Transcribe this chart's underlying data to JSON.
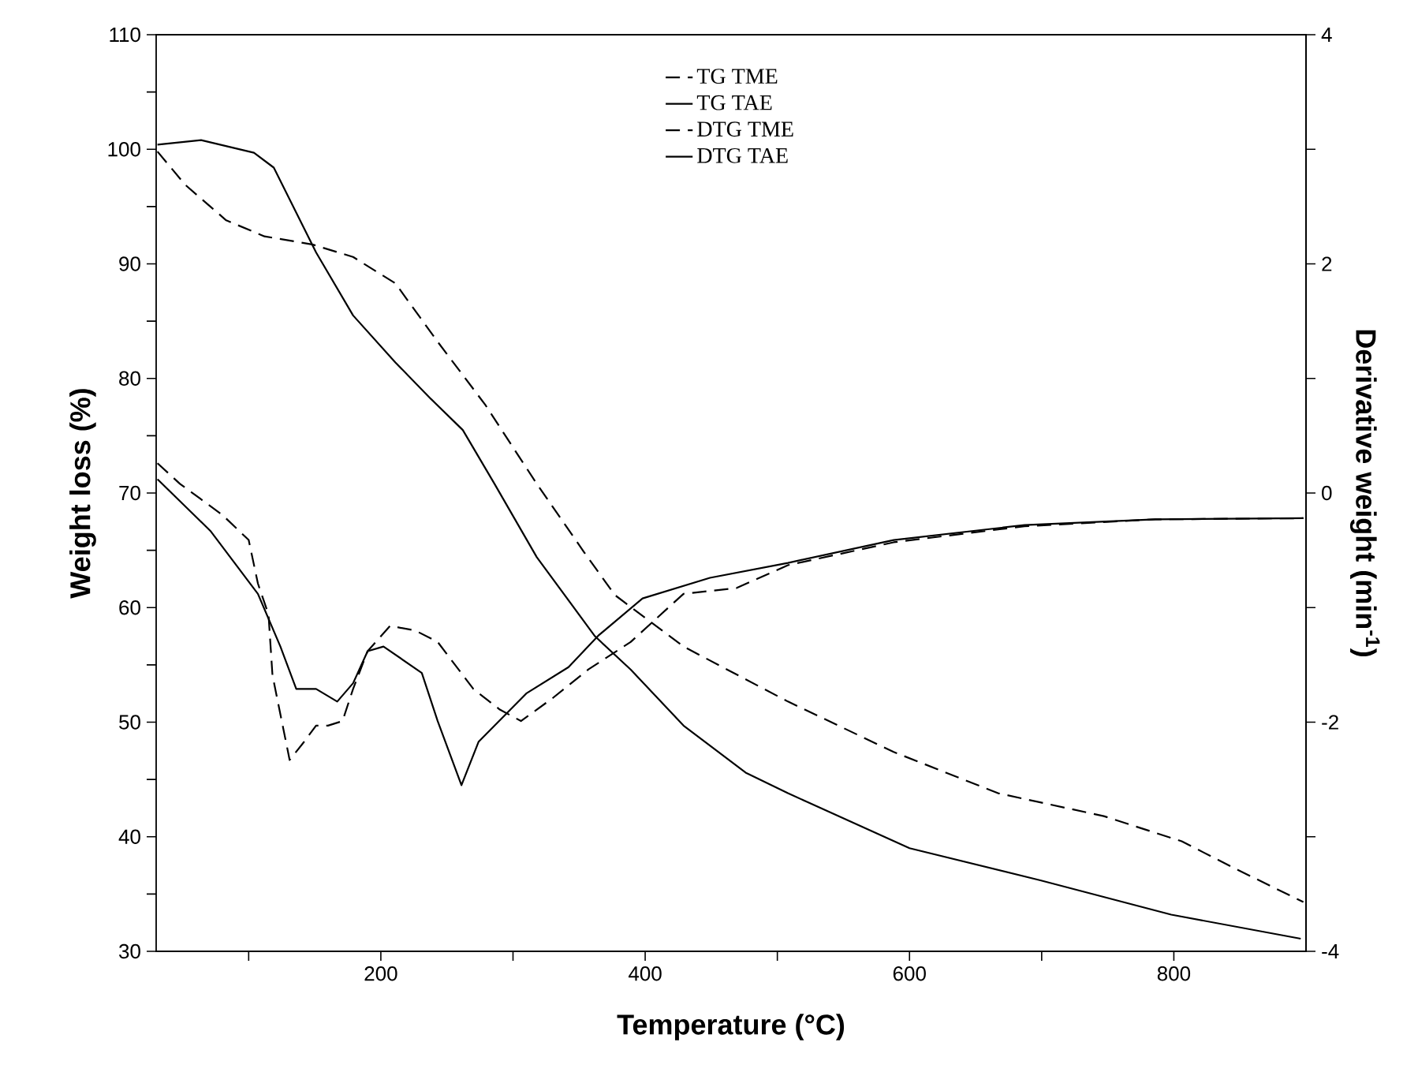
{
  "chart_data": {
    "type": "line",
    "xlabel": "Temperature (°C)",
    "ylabel": "Weight loss (%)",
    "y2label": "Derivative weight (min$^{-1}$)",
    "xlim": [
      30,
      900
    ],
    "ylim": [
      30,
      110
    ],
    "y2lim": [
      -4,
      4
    ],
    "xticks": [
      {
        "value": 100,
        "label": null
      },
      200,
      {
        "value": 300,
        "label": null
      },
      400,
      {
        "value": 500,
        "label": null
      },
      600,
      {
        "value": 700,
        "label": null
      },
      800
    ],
    "yticks": [
      30,
      {
        "value": 35,
        "label": null
      },
      40,
      {
        "value": 45,
        "label": null
      },
      50,
      {
        "value": 55,
        "label": null
      },
      60,
      {
        "value": 65,
        "label": null
      },
      70,
      {
        "value": 75,
        "label": null
      },
      80,
      {
        "value": 85,
        "label": null
      },
      90,
      {
        "value": 95,
        "label": null
      },
      100,
      {
        "value": 105,
        "label": null
      },
      110
    ],
    "y2ticks": [
      -4,
      {
        "value": -3,
        "label": null
      },
      -2,
      {
        "value": -1,
        "label": null
      },
      0,
      {
        "value": 1,
        "label": null
      },
      2,
      {
        "value": 3,
        "label": null
      },
      4
    ],
    "legend": "top",
    "grid": false,
    "series": [
      {
        "name": "TG TME",
        "color": "#000000",
        "line_style": "dashed",
        "axis": "y",
        "x": [
          31,
          52,
          83,
          112,
          148,
          179,
          211,
          243,
          279,
          318,
          354,
          377,
          429,
          508,
          588,
          667,
          747,
          806,
          845,
          898
        ],
        "values": [
          99.8,
          96.9,
          93.8,
          92.4,
          91.7,
          90.6,
          88.3,
          83.2,
          77.7,
          70.8,
          64.8,
          61.1,
          56.6,
          51.8,
          47.4,
          43.8,
          41.8,
          39.6,
          37.3,
          34.3
        ]
      },
      {
        "name": "TG TAE",
        "color": "#000000",
        "line_style": "solid",
        "axis": "y",
        "x": [
          31,
          64,
          104,
          119,
          135,
          151,
          179,
          211,
          238,
          262,
          286,
          318,
          362,
          389,
          429,
          476,
          508,
          600,
          699,
          798,
          896
        ],
        "values": [
          100.4,
          100.8,
          99.7,
          98.4,
          94.7,
          91.0,
          85.5,
          81.4,
          78.2,
          75.5,
          70.8,
          64.4,
          57.5,
          54.6,
          49.7,
          45.6,
          43.8,
          39.0,
          36.2,
          33.2,
          31.1
        ]
      },
      {
        "name": "DTG TME",
        "color": "#000000",
        "line_style": "dashed",
        "axis": "y2",
        "x": [
          31,
          48,
          80,
          100,
          107,
          115,
          118,
          131,
          142,
          151,
          160,
          171,
          179,
          190,
          207,
          226,
          243,
          270,
          290,
          306,
          330,
          357,
          389,
          429,
          469,
          508,
          588,
          687,
          786,
          898
        ],
        "values": [
          0.26,
          0.08,
          -0.19,
          -0.41,
          -0.79,
          -1.06,
          -1.59,
          -2.33,
          -2.17,
          -2.03,
          -2.03,
          -1.99,
          -1.71,
          -1.38,
          -1.16,
          -1.2,
          -1.3,
          -1.71,
          -1.89,
          -1.99,
          -1.79,
          -1.54,
          -1.3,
          -0.88,
          -0.83,
          -0.63,
          -0.43,
          -0.29,
          -0.23,
          -0.22
        ]
      },
      {
        "name": "DTG TAE",
        "color": "#000000",
        "line_style": "solid",
        "axis": "y2",
        "x": [
          31,
          71,
          107,
          124,
          136,
          151,
          167,
          179,
          190,
          202,
          231,
          243,
          261,
          274,
          310,
          342,
          365,
          398,
          449,
          508,
          588,
          687,
          786,
          898
        ],
        "values": [
          0.12,
          -0.33,
          -0.88,
          -1.34,
          -1.71,
          -1.71,
          -1.82,
          -1.66,
          -1.38,
          -1.34,
          -1.57,
          -1.99,
          -2.55,
          -2.17,
          -1.75,
          -1.52,
          -1.24,
          -0.92,
          -0.74,
          -0.61,
          -0.41,
          -0.28,
          -0.23,
          -0.22
        ]
      }
    ]
  }
}
